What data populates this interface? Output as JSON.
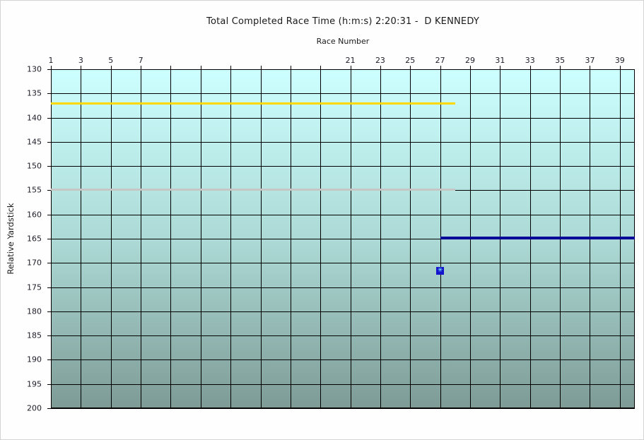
{
  "chart_data": {
    "type": "line",
    "title": "Total Completed Race Time (h:m:s) 2:20:31 -  D KENNEDY",
    "xlabel": "Race Number",
    "ylabel": "Relative Yardstick",
    "xlim": [
      1,
      40
    ],
    "ylim_top": 130,
    "ylim_bottom": 200,
    "y_inverted": true,
    "grid": true,
    "legend": "none",
    "x_ticks": [
      1,
      3,
      5,
      7,
      9,
      11,
      13,
      15,
      17,
      19,
      21,
      23,
      25,
      27,
      29,
      31,
      33,
      35,
      37,
      39
    ],
    "x_tick_labels_shown": [
      1,
      3,
      5,
      7,
      21,
      23,
      25,
      27,
      29,
      31,
      33,
      35,
      37,
      39
    ],
    "y_ticks": [
      130,
      135,
      140,
      145,
      150,
      155,
      160,
      165,
      170,
      175,
      180,
      185,
      190,
      195,
      200
    ],
    "colors": {
      "plot_bg_top": "#CCFFFF",
      "plot_bg_mid": "#ABD8D4",
      "plot_bg_bottom": "#7E9B96",
      "grid": "#000000",
      "text": "#1a1a1a"
    },
    "series": [
      {
        "name": "yellow-yardstick-line",
        "color": "#FFD800",
        "thickness": 3,
        "x_start": 1,
        "x_end": 28,
        "y": 137.0
      },
      {
        "name": "silver-yardstick-line",
        "color": "#C6C6C6",
        "thickness": 3,
        "x_start": 1,
        "x_end": 28,
        "y": 154.8
      },
      {
        "name": "navy-yardstick-line",
        "color": "#000099",
        "thickness": 4,
        "x_start": 27,
        "x_end": 40,
        "y": 164.8
      }
    ],
    "markers": [
      {
        "name": "race-data-point",
        "x": 27,
        "y": 171.6,
        "fill": "#1414CC",
        "glyph": "✳",
        "glyph_color": "#80FFFF"
      }
    ]
  }
}
